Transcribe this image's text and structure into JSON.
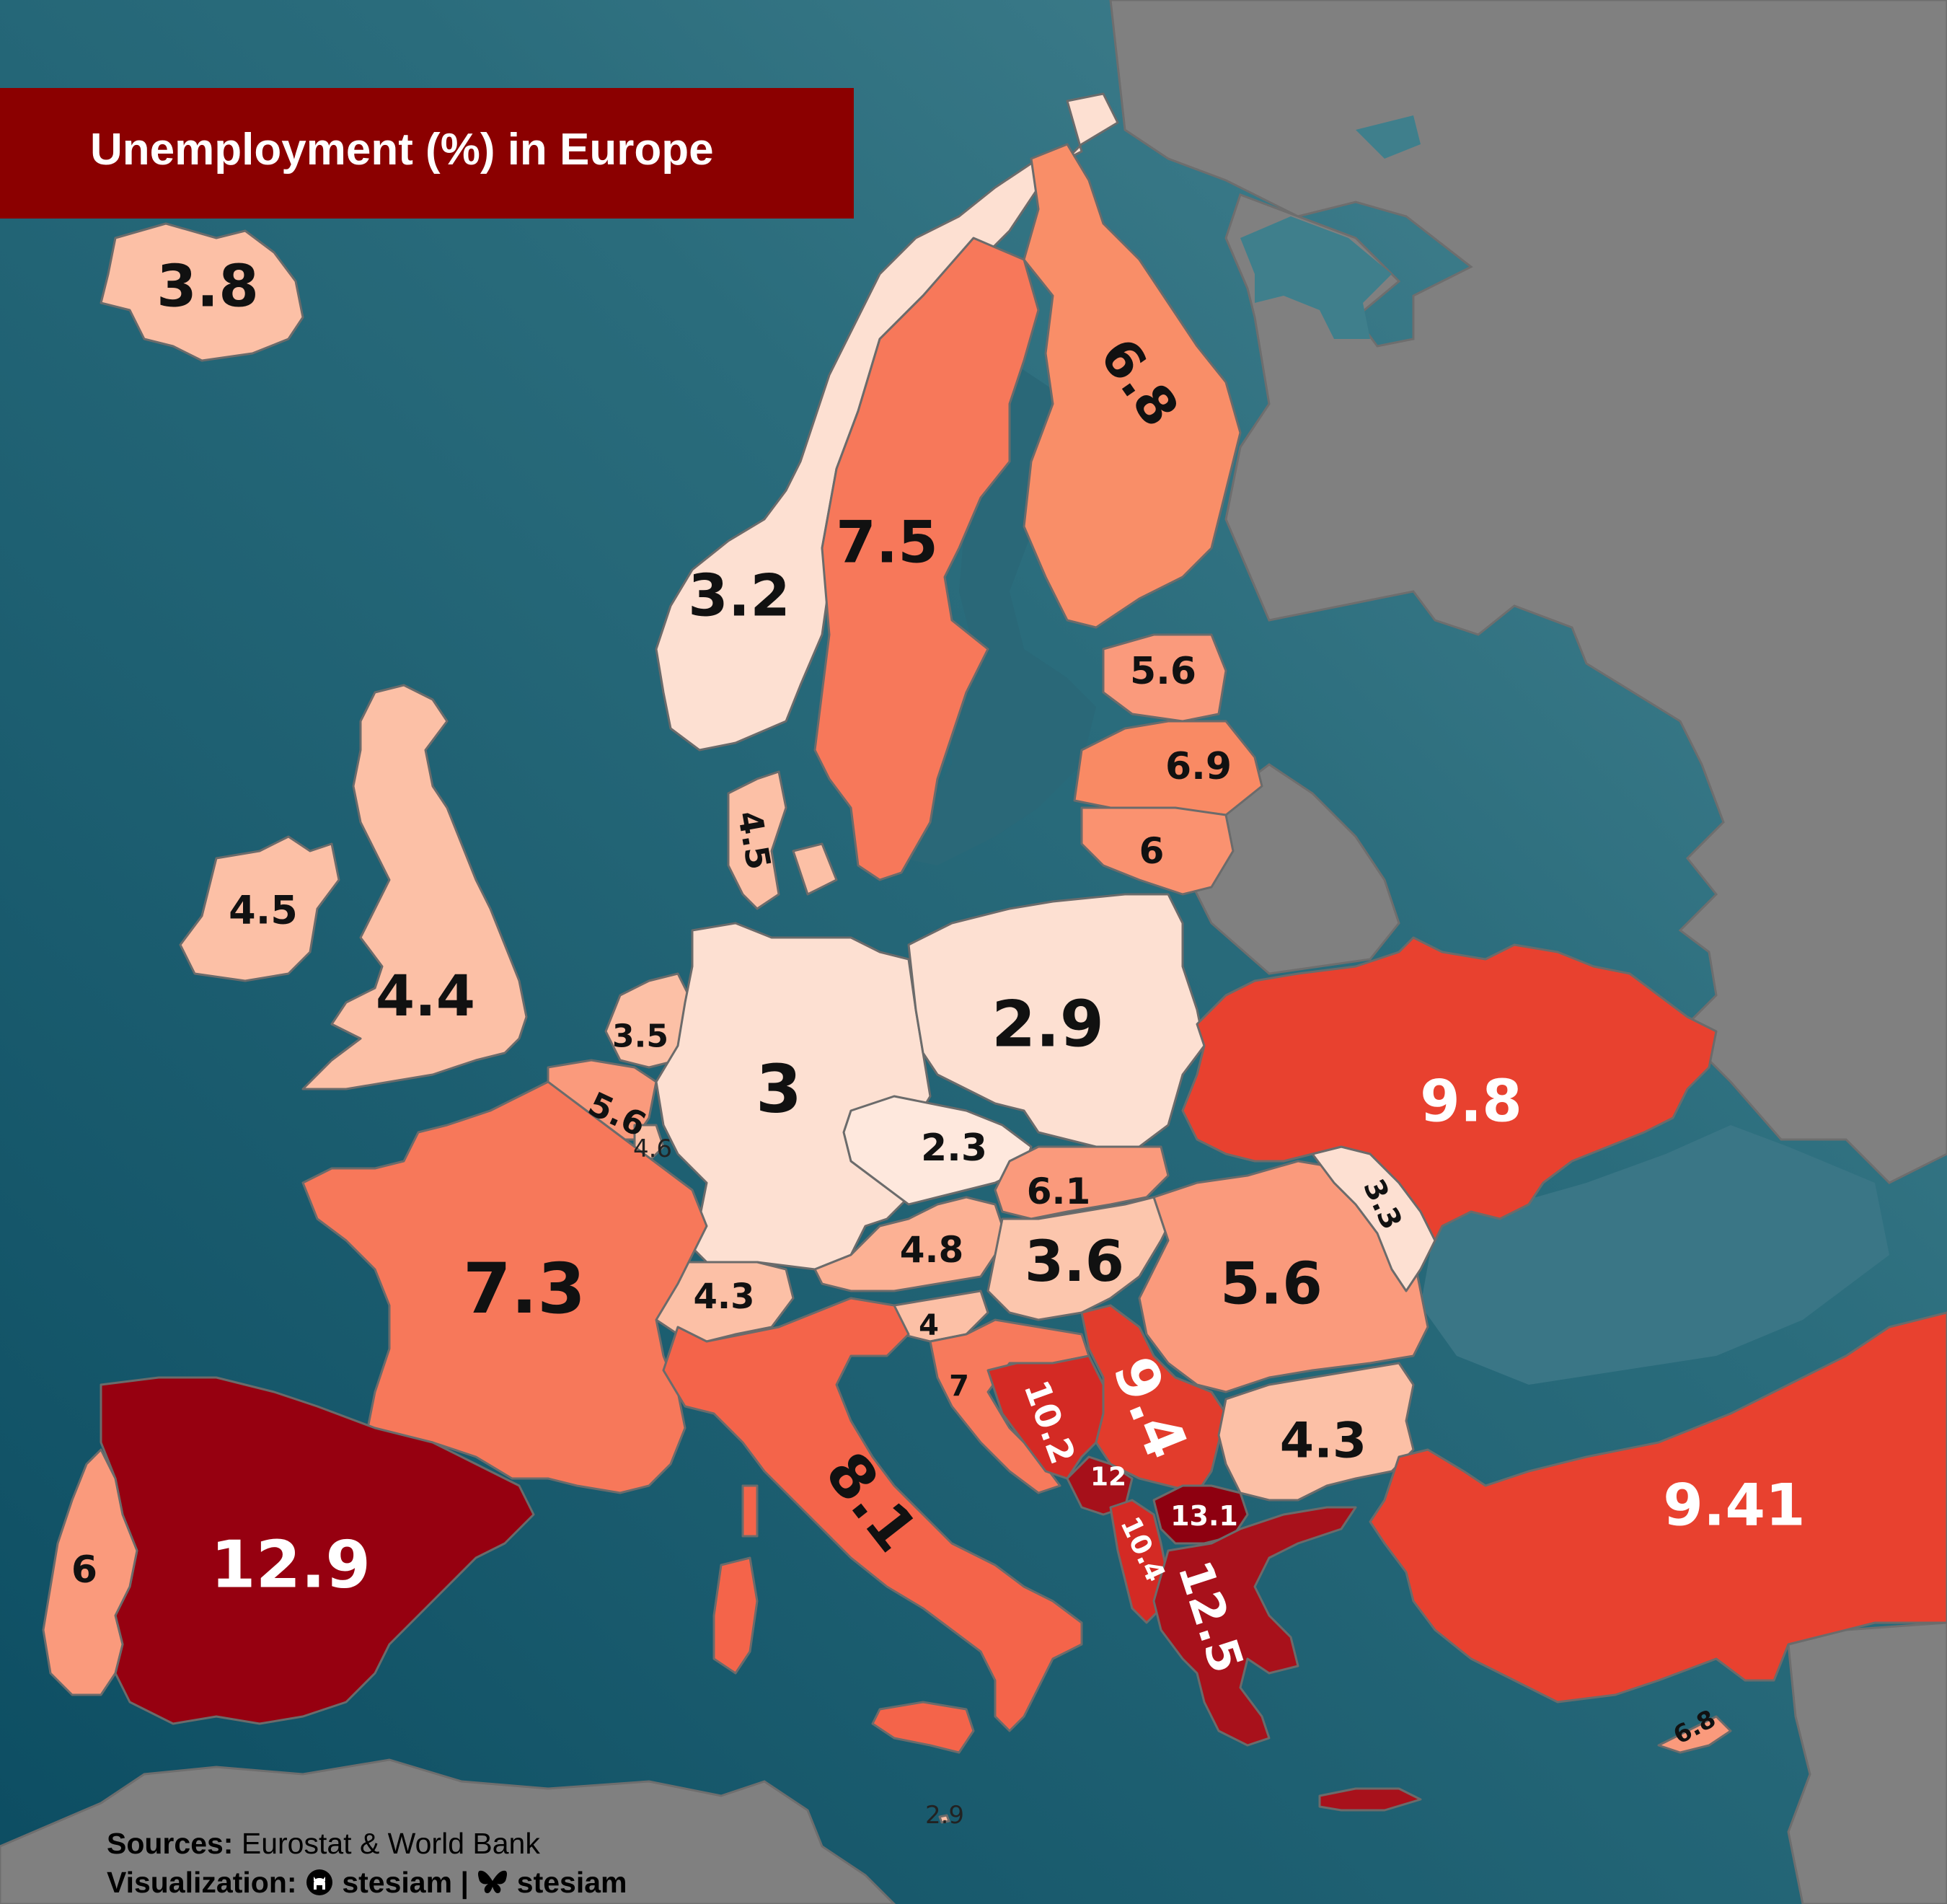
{
  "title": "Unemployment (%) in Europe",
  "footer": {
    "sources_label": "Sources:",
    "sources_value": "Eurostat & World Bank",
    "visualization_label": "Visualization:",
    "github_handle": "stesiam",
    "separator": "|",
    "bluesky_handle": "stesiam",
    "github_icon": "github-icon",
    "bluesky_icon": "bluesky-butterfly-icon"
  },
  "colors": {
    "sea": "#1f5f6f",
    "non_eu_land": "#808080",
    "title_bg": "#8b0000",
    "scale": [
      "#fde0d2",
      "#fcc0a6",
      "#fa9a7c",
      "#f4704f",
      "#e8412f",
      "#c01a1f",
      "#960010"
    ]
  },
  "labels": {
    "iceland": "3.8",
    "norway": "3.2",
    "sweden": "7.5",
    "finland": "6.8",
    "estonia": "5.6",
    "latvia": "6.9",
    "lithuania": "6",
    "denmark": "4.5",
    "ireland": "4.5",
    "uk": "4.4",
    "netherlands": "3.5",
    "belgium": "5.6",
    "luxembourg": "4.6",
    "germany": "3",
    "poland": "2.9",
    "czechia": "2.3",
    "slovakia": "6.1",
    "austria": "4.8",
    "hungary": "3.6",
    "switzerland": "4.3",
    "slovenia": "4",
    "croatia": "7",
    "bosnia": "10.2",
    "serbia": "9.4",
    "montenegro": "12",
    "albania": "10.4",
    "north_macedonia": "13.1",
    "greece": "12.5",
    "romania": "5.6",
    "moldova": "3.3",
    "ukraine": "9.8",
    "bulgaria": "4.3",
    "turkey": "9.41",
    "france": "7.3",
    "spain": "12.9",
    "portugal": "6",
    "italy": "8.1",
    "cyprus": "6.8",
    "malta": "2.9"
  }
}
